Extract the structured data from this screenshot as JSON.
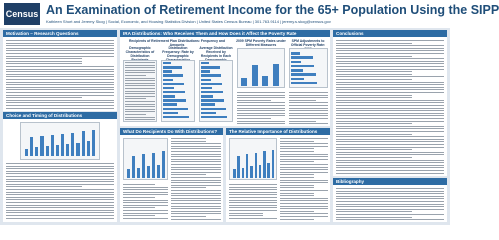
{
  "header": {
    "logo": "Census",
    "title": "An Examination of Retirement Income for the 65+ Population Using the SIPP",
    "authors": "Kathleen Short and Jeremy Skog | Social, Economic, and Housing Statistics Division | United States Census Bureau | 301.763.9114 | jeremy.s.skog@census.gov"
  },
  "sections": {
    "motivation": "Motivation – Research Questions",
    "choice": "Choice and Timing of Distributions",
    "ira": "IRA Distributions: Who Receives Them and How Does it Affect the Poverty Rate",
    "recipients": "Recipients of Retirement Plan Distributions: Frequency and Amounts",
    "poverty": "2009 SPM Poverty Rates under Different Measures",
    "adjust": "SPM Adjustments to Official Poverty Rate: 2009",
    "demo": "Demographic Characteristics of Distribution Recipients",
    "freq": "Distribution Frequency: Rate by Demographic Characteristics",
    "avg": "Average Distribution Received by Recipients in Each Demographic Category",
    "what": "What Do Recipients Do With Distributions?",
    "relative": "The Relative Importance of Distributions",
    "conclusions": "Conclusions",
    "bibliography": "Bibliography"
  }
}
